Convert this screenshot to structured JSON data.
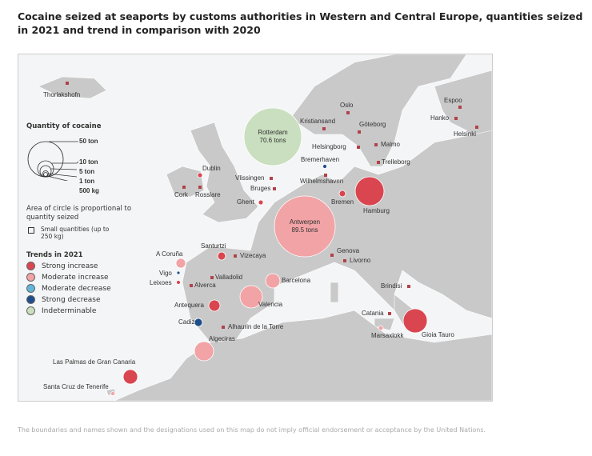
{
  "title": "Cocaine seized at seaports by customs authorities in Western and Central Europe, quantities seized in 2021 and trend in comparison with 2020",
  "legend": {
    "quantity_title": "Quantity of cocaine",
    "sizes": [
      "50 ton",
      "10 ton",
      "5 ton",
      "1 ton",
      "500 kg"
    ],
    "area_note": "Area of circle is proportional to quantity seized",
    "small_note": "Small quantities (up to 250 kg)",
    "trends_title": "Trends in 2021",
    "trends": [
      {
        "label": "Strong increase",
        "color": "#d94650"
      },
      {
        "label": "Moderate increase",
        "color": "#f2a3a6"
      },
      {
        "label": "Moderate decrease",
        "color": "#62b6da"
      },
      {
        "label": "Strong decrease",
        "color": "#1f4e8c"
      },
      {
        "label": "Indeterminable",
        "color": "#c9dfbf"
      }
    ]
  },
  "ports": [
    {
      "name": "Thorlakshofn",
      "trend": "small"
    },
    {
      "name": "Dublin",
      "trend": "Strong increase"
    },
    {
      "name": "Cork",
      "trend": "small"
    },
    {
      "name": "Rosslare",
      "trend": "small"
    },
    {
      "name": "Rotterdam",
      "quantity": "70.6 tons",
      "trend": "Indeterminable"
    },
    {
      "name": "Antwerpen",
      "quantity": "89.5 tons",
      "trend": "Moderate increase"
    },
    {
      "name": "Hamburg",
      "trend": "Strong increase"
    },
    {
      "name": "Bremen",
      "trend": "Strong increase"
    },
    {
      "name": "Bremerhaven",
      "trend": "Strong decrease"
    },
    {
      "name": "Wilhelmshaven",
      "trend": "small"
    },
    {
      "name": "Vlissingen",
      "trend": "small"
    },
    {
      "name": "Bruges",
      "trend": "small"
    },
    {
      "name": "Ghent",
      "trend": "Strong increase"
    },
    {
      "name": "Oslo",
      "trend": "small"
    },
    {
      "name": "Kristiansand",
      "trend": "small"
    },
    {
      "name": "Göteborg",
      "trend": "small"
    },
    {
      "name": "Helsingborg",
      "trend": "small"
    },
    {
      "name": "Malmo",
      "trend": "small"
    },
    {
      "name": "Trelleborg",
      "trend": "small"
    },
    {
      "name": "Espoo",
      "trend": "small"
    },
    {
      "name": "Hanko",
      "trend": "small"
    },
    {
      "name": "Helsinki",
      "trend": "small"
    },
    {
      "name": "A Coruña",
      "trend": "Moderate increase"
    },
    {
      "name": "Vigo",
      "trend": "Strong decrease"
    },
    {
      "name": "Leixoes",
      "trend": "Strong increase"
    },
    {
      "name": "Alverca",
      "trend": "small"
    },
    {
      "name": "Santurtzi",
      "trend": "Strong increase"
    },
    {
      "name": "Vizecaya",
      "trend": "small"
    },
    {
      "name": "Valladolid",
      "trend": "small"
    },
    {
      "name": "Barcelona",
      "trend": "Moderate increase"
    },
    {
      "name": "Valencia",
      "trend": "Moderate increase"
    },
    {
      "name": "Antequera",
      "trend": "Strong increase"
    },
    {
      "name": "Cadiz",
      "trend": "Strong decrease"
    },
    {
      "name": "Alhaurin de la Torre",
      "trend": "small"
    },
    {
      "name": "Algeciras",
      "trend": "Moderate increase"
    },
    {
      "name": "Genova",
      "trend": "small"
    },
    {
      "name": "Livorno",
      "trend": "small"
    },
    {
      "name": "Brindisi",
      "trend": "small"
    },
    {
      "name": "Catania",
      "trend": "small"
    },
    {
      "name": "Marsaxlokk",
      "trend": "Moderate increase"
    },
    {
      "name": "Gioia Tauro",
      "trend": "Strong increase"
    },
    {
      "name": "Las Palmas de Gran Canaria",
      "trend": "Strong increase"
    },
    {
      "name": "Santa Cruz de Tenerife",
      "trend": "Moderate increase"
    }
  ],
  "footer": "The boundaries and names shown and the designations used on this map do not imply official endorsement or acceptance by the United Nations."
}
